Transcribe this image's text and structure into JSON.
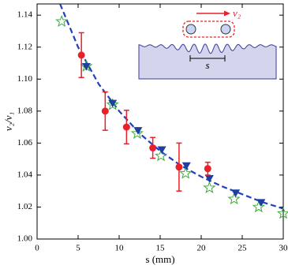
{
  "chart_data": {
    "type": "scatter",
    "x_label": "s (mm)",
    "y_label": "v₂/v₁",
    "xlim": [
      0,
      30
    ],
    "ylim": [
      1.0,
      1.147
    ],
    "xticks": [
      0,
      5,
      10,
      15,
      20,
      25,
      30
    ],
    "yticks": [
      {
        "value": 1.0,
        "label": "1.00"
      },
      {
        "value": 1.02,
        "label": "1.02"
      },
      {
        "value": 1.04,
        "label": "1.04"
      },
      {
        "value": 1.06,
        "label": "1.06"
      },
      {
        "value": 1.08,
        "label": "1.08"
      },
      {
        "value": 1.1,
        "label": "1.10"
      },
      {
        "value": 1.12,
        "label": "1.12"
      },
      {
        "value": 1.14,
        "label": "1.14"
      }
    ],
    "series": [
      {
        "marker": "line",
        "style": "dashed",
        "color": "#1f3fbf",
        "x": [
          2.8,
          5,
          7.5,
          10,
          12.5,
          15,
          17.5,
          20,
          22.5,
          25,
          27.5,
          30
        ],
        "values": [
          1.147,
          1.12,
          1.097,
          1.08,
          1.066,
          1.055,
          1.046,
          1.039,
          1.033,
          1.028,
          1.023,
          1.019
        ]
      },
      {
        "marker": "star",
        "color": "#3caa3c",
        "x": [
          3,
          6,
          9.2,
          12.2,
          15.1,
          18.1,
          21,
          24,
          27,
          30
        ],
        "values": [
          1.136,
          1.108,
          1.084,
          1.066,
          1.052,
          1.041,
          1.032,
          1.025,
          1.02,
          1.016
        ]
      },
      {
        "marker": "triangle-down",
        "color": "#1f3fa0",
        "x": [
          6,
          9.2,
          12.3,
          15.2,
          18.2,
          21,
          24.2,
          27.3
        ],
        "values": [
          1.108,
          1.085,
          1.068,
          1.056,
          1.046,
          1.038,
          1.029,
          1.023
        ]
      },
      {
        "marker": "circle",
        "color": "#e8202a",
        "x": [
          5.4,
          8.3,
          10.9,
          14.1,
          17.3,
          20.8
        ],
        "values": [
          1.115,
          1.08,
          1.07,
          1.057,
          1.045,
          1.044
        ],
        "errors": [
          0.014,
          0.012,
          0.0105,
          0.0065,
          0.015,
          0.004
        ]
      }
    ],
    "inset": {
      "velocity_label": "v₂",
      "spacing_label": "s"
    }
  }
}
